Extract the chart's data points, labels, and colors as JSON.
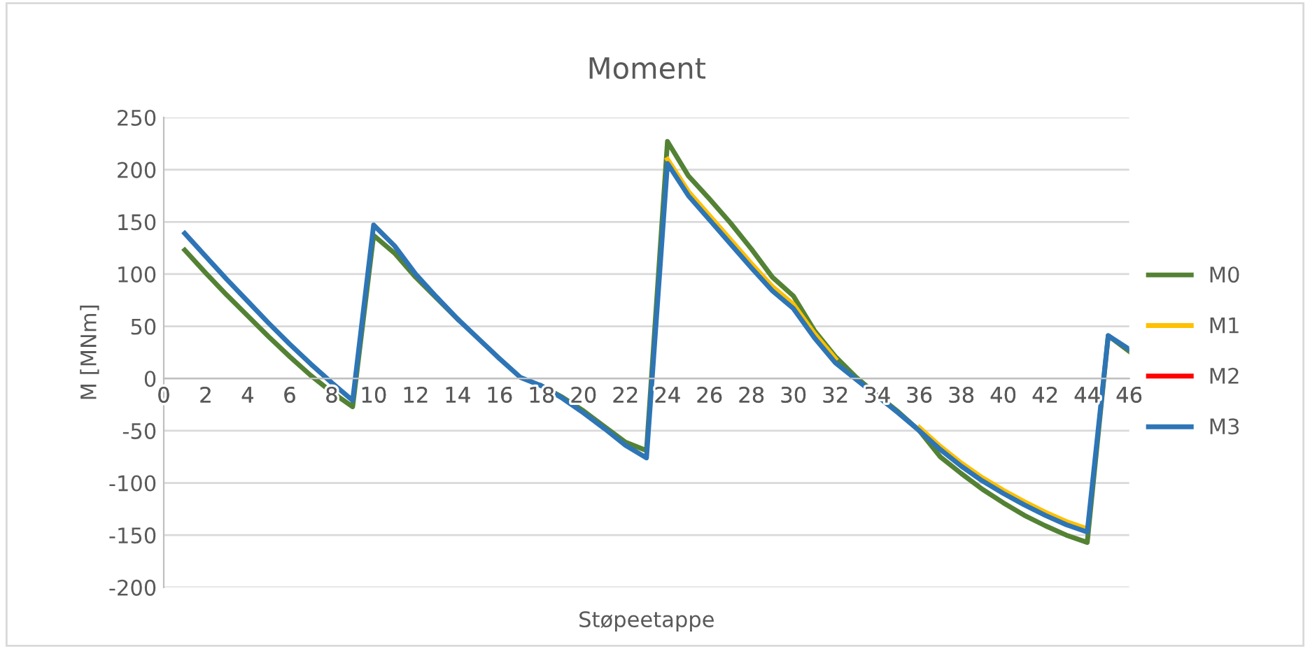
{
  "chart_data": {
    "type": "line",
    "title": "Moment",
    "xlabel": "Støpeetappe",
    "ylabel": "M [MNm]",
    "x": [
      1,
      2,
      3,
      4,
      5,
      6,
      7,
      8,
      9,
      10,
      11,
      12,
      13,
      14,
      15,
      16,
      17,
      18,
      19,
      20,
      21,
      22,
      23,
      24,
      25,
      26,
      27,
      28,
      29,
      30,
      31,
      32,
      33,
      34,
      35,
      36,
      37,
      38,
      39,
      40,
      41,
      42,
      43,
      44,
      45,
      46
    ],
    "series": [
      {
        "name": "M0",
        "color": "#548235",
        "values": [
          123,
          101,
          80,
          60,
          40,
          21,
          3,
          -13,
          -27,
          137,
          120,
          97,
          77,
          57,
          null,
          null,
          null,
          -7,
          -18,
          -31,
          -46,
          -61,
          -69,
          227,
          194,
          172,
          149,
          124,
          97,
          79,
          46,
          21,
          1,
          -16,
          -32,
          -50,
          -75,
          -91,
          -106,
          -119,
          -131,
          -141,
          -150,
          -157,
          41,
          26
        ]
      },
      {
        "name": "M1",
        "color": "#ffc000",
        "values": [
          null,
          null,
          null,
          null,
          null,
          null,
          null,
          null,
          null,
          null,
          null,
          null,
          null,
          null,
          null,
          null,
          null,
          null,
          null,
          null,
          null,
          null,
          null,
          210,
          179,
          156,
          133,
          110,
          88,
          71,
          43,
          19,
          null,
          null,
          null,
          -47,
          -65,
          -81,
          -95,
          -107,
          -118,
          -128,
          -137,
          -144,
          null,
          null
        ]
      },
      {
        "name": "M2",
        "color": "#ff0000",
        "values": [
          null,
          null,
          null,
          null,
          null,
          null,
          null,
          null,
          null,
          null,
          null,
          null,
          null,
          null,
          null,
          null,
          null,
          null,
          null,
          null,
          null,
          null,
          null,
          null,
          null,
          null,
          null,
          null,
          null,
          null,
          null,
          null,
          null,
          null,
          null,
          null,
          null,
          null,
          null,
          null,
          null,
          null,
          null,
          null,
          null,
          null
        ]
      },
      {
        "name": "M3",
        "color": "#2e75b6",
        "values": [
          139,
          117,
          95,
          74,
          53,
          33,
          14,
          -4,
          -21,
          147,
          127,
          100,
          78,
          57,
          38,
          19,
          1,
          -7,
          -19,
          -33,
          -48,
          -64,
          -76,
          206,
          175,
          152,
          129,
          106,
          84,
          67,
          39,
          15,
          -1,
          -17,
          -33,
          -50,
          -68,
          -84,
          -98,
          -110,
          -121,
          -131,
          -140,
          -147,
          41,
          28
        ]
      }
    ],
    "xlim": [
      0,
      46
    ],
    "xticks": [
      0,
      2,
      4,
      6,
      8,
      10,
      12,
      14,
      16,
      18,
      20,
      22,
      24,
      26,
      28,
      30,
      32,
      34,
      36,
      38,
      40,
      42,
      44,
      46
    ],
    "ylim": [
      -200,
      250
    ],
    "yticks": [
      -200,
      -150,
      -100,
      -50,
      0,
      50,
      100,
      150,
      200,
      250
    ],
    "grid": "y",
    "legend": "right",
    "marker": "none",
    "line_style": "solid"
  }
}
